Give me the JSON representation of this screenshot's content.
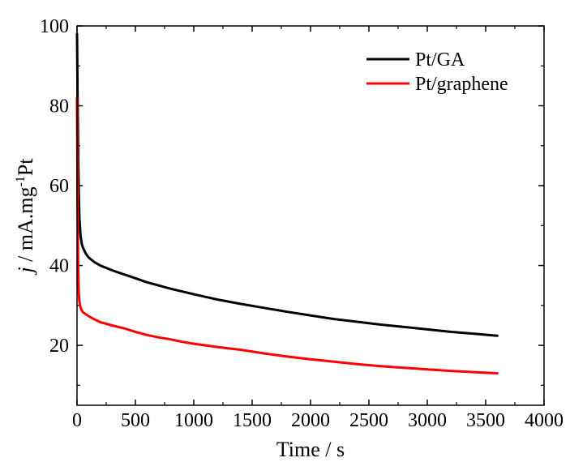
{
  "chart_data": {
    "type": "line",
    "title": "",
    "xlabel": "Time / s",
    "ylabel": {
      "italic": "j",
      "text": " / mA.mg",
      "superscript": "-1",
      "suffix": "Pt"
    },
    "xlim": [
      0,
      4000
    ],
    "ylim": [
      5,
      100
    ],
    "x_ticks": [
      0,
      500,
      1000,
      1500,
      2000,
      2500,
      3000,
      3500,
      4000
    ],
    "y_ticks": [
      20,
      40,
      60,
      80,
      100
    ],
    "grid": false,
    "legend_position": "top-right",
    "series": [
      {
        "name": "Pt/GA",
        "color": "#000000",
        "x": [
          0,
          5,
          10,
          15,
          20,
          30,
          40,
          50,
          75,
          100,
          150,
          200,
          300,
          400,
          500,
          600,
          700,
          800,
          900,
          1000,
          1200,
          1400,
          1600,
          1800,
          2000,
          2200,
          2400,
          2600,
          2800,
          3000,
          3200,
          3400,
          3600
        ],
        "y": [
          98,
          82,
          68,
          58,
          52,
          47.5,
          45.5,
          44.5,
          43,
          42,
          40.8,
          40,
          38.8,
          37.8,
          36.8,
          35.8,
          35,
          34.2,
          33.5,
          32.8,
          31.5,
          30.4,
          29.4,
          28.4,
          27.5,
          26.6,
          25.9,
          25.2,
          24.6,
          24,
          23.4,
          22.9,
          22.4
        ]
      },
      {
        "name": "Pt/graphene",
        "color": "#ff0000",
        "x": [
          0,
          5,
          10,
          15,
          20,
          30,
          40,
          50,
          75,
          100,
          150,
          200,
          300,
          400,
          500,
          600,
          700,
          800,
          900,
          1000,
          1200,
          1400,
          1600,
          1800,
          2000,
          2200,
          2400,
          2600,
          2800,
          3000,
          3200,
          3400,
          3600
        ],
        "y": [
          82,
          55,
          40,
          33,
          31,
          29.5,
          28.8,
          28.3,
          27.8,
          27.3,
          26.5,
          25.8,
          25,
          24.3,
          23.4,
          22.6,
          22,
          21.5,
          20.9,
          20.4,
          19.6,
          18.9,
          18,
          17.2,
          16.5,
          15.9,
          15.3,
          14.8,
          14.4,
          14,
          13.6,
          13.3,
          13.0
        ]
      }
    ]
  }
}
